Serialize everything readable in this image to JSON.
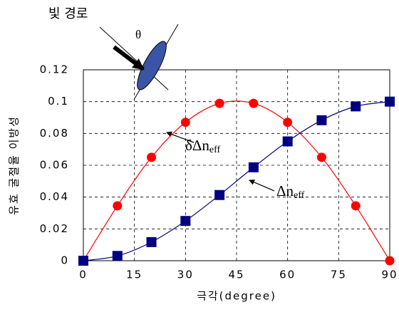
{
  "chart_data": {
    "type": "line",
    "x_label": "극각(degree)",
    "y_label": "유효 굴절율 이방성",
    "x": [
      0,
      10,
      20,
      30,
      40,
      50,
      60,
      70,
      80,
      90
    ],
    "series": [
      {
        "color": "#ff0000",
        "marker": "circle",
        "values": [
          0,
          0.0345,
          0.065,
          0.087,
          0.0989,
          0.0989,
          0.087,
          0.065,
          0.0345,
          0
        ]
      },
      {
        "color": "#000080",
        "marker": "square",
        "values": [
          0,
          0.003,
          0.0117,
          0.025,
          0.0413,
          0.0587,
          0.075,
          0.0883,
          0.097,
          0.1
        ]
      }
    ],
    "xlim": [
      0,
      90
    ],
    "xticks": [
      0,
      15,
      30,
      45,
      60,
      75,
      90
    ],
    "ylim": [
      0,
      0.12
    ],
    "yticks": [
      0,
      0.02,
      0.04,
      0.06,
      0.08,
      0.1,
      0.12
    ],
    "grid": true,
    "annotations": [
      {
        "text": "δΔn",
        "subscript": "eff"
      },
      {
        "text": "Δn",
        "subscript": "eff"
      }
    ],
    "inset": {
      "light_path": "빛 경로",
      "angle": "θ"
    }
  }
}
